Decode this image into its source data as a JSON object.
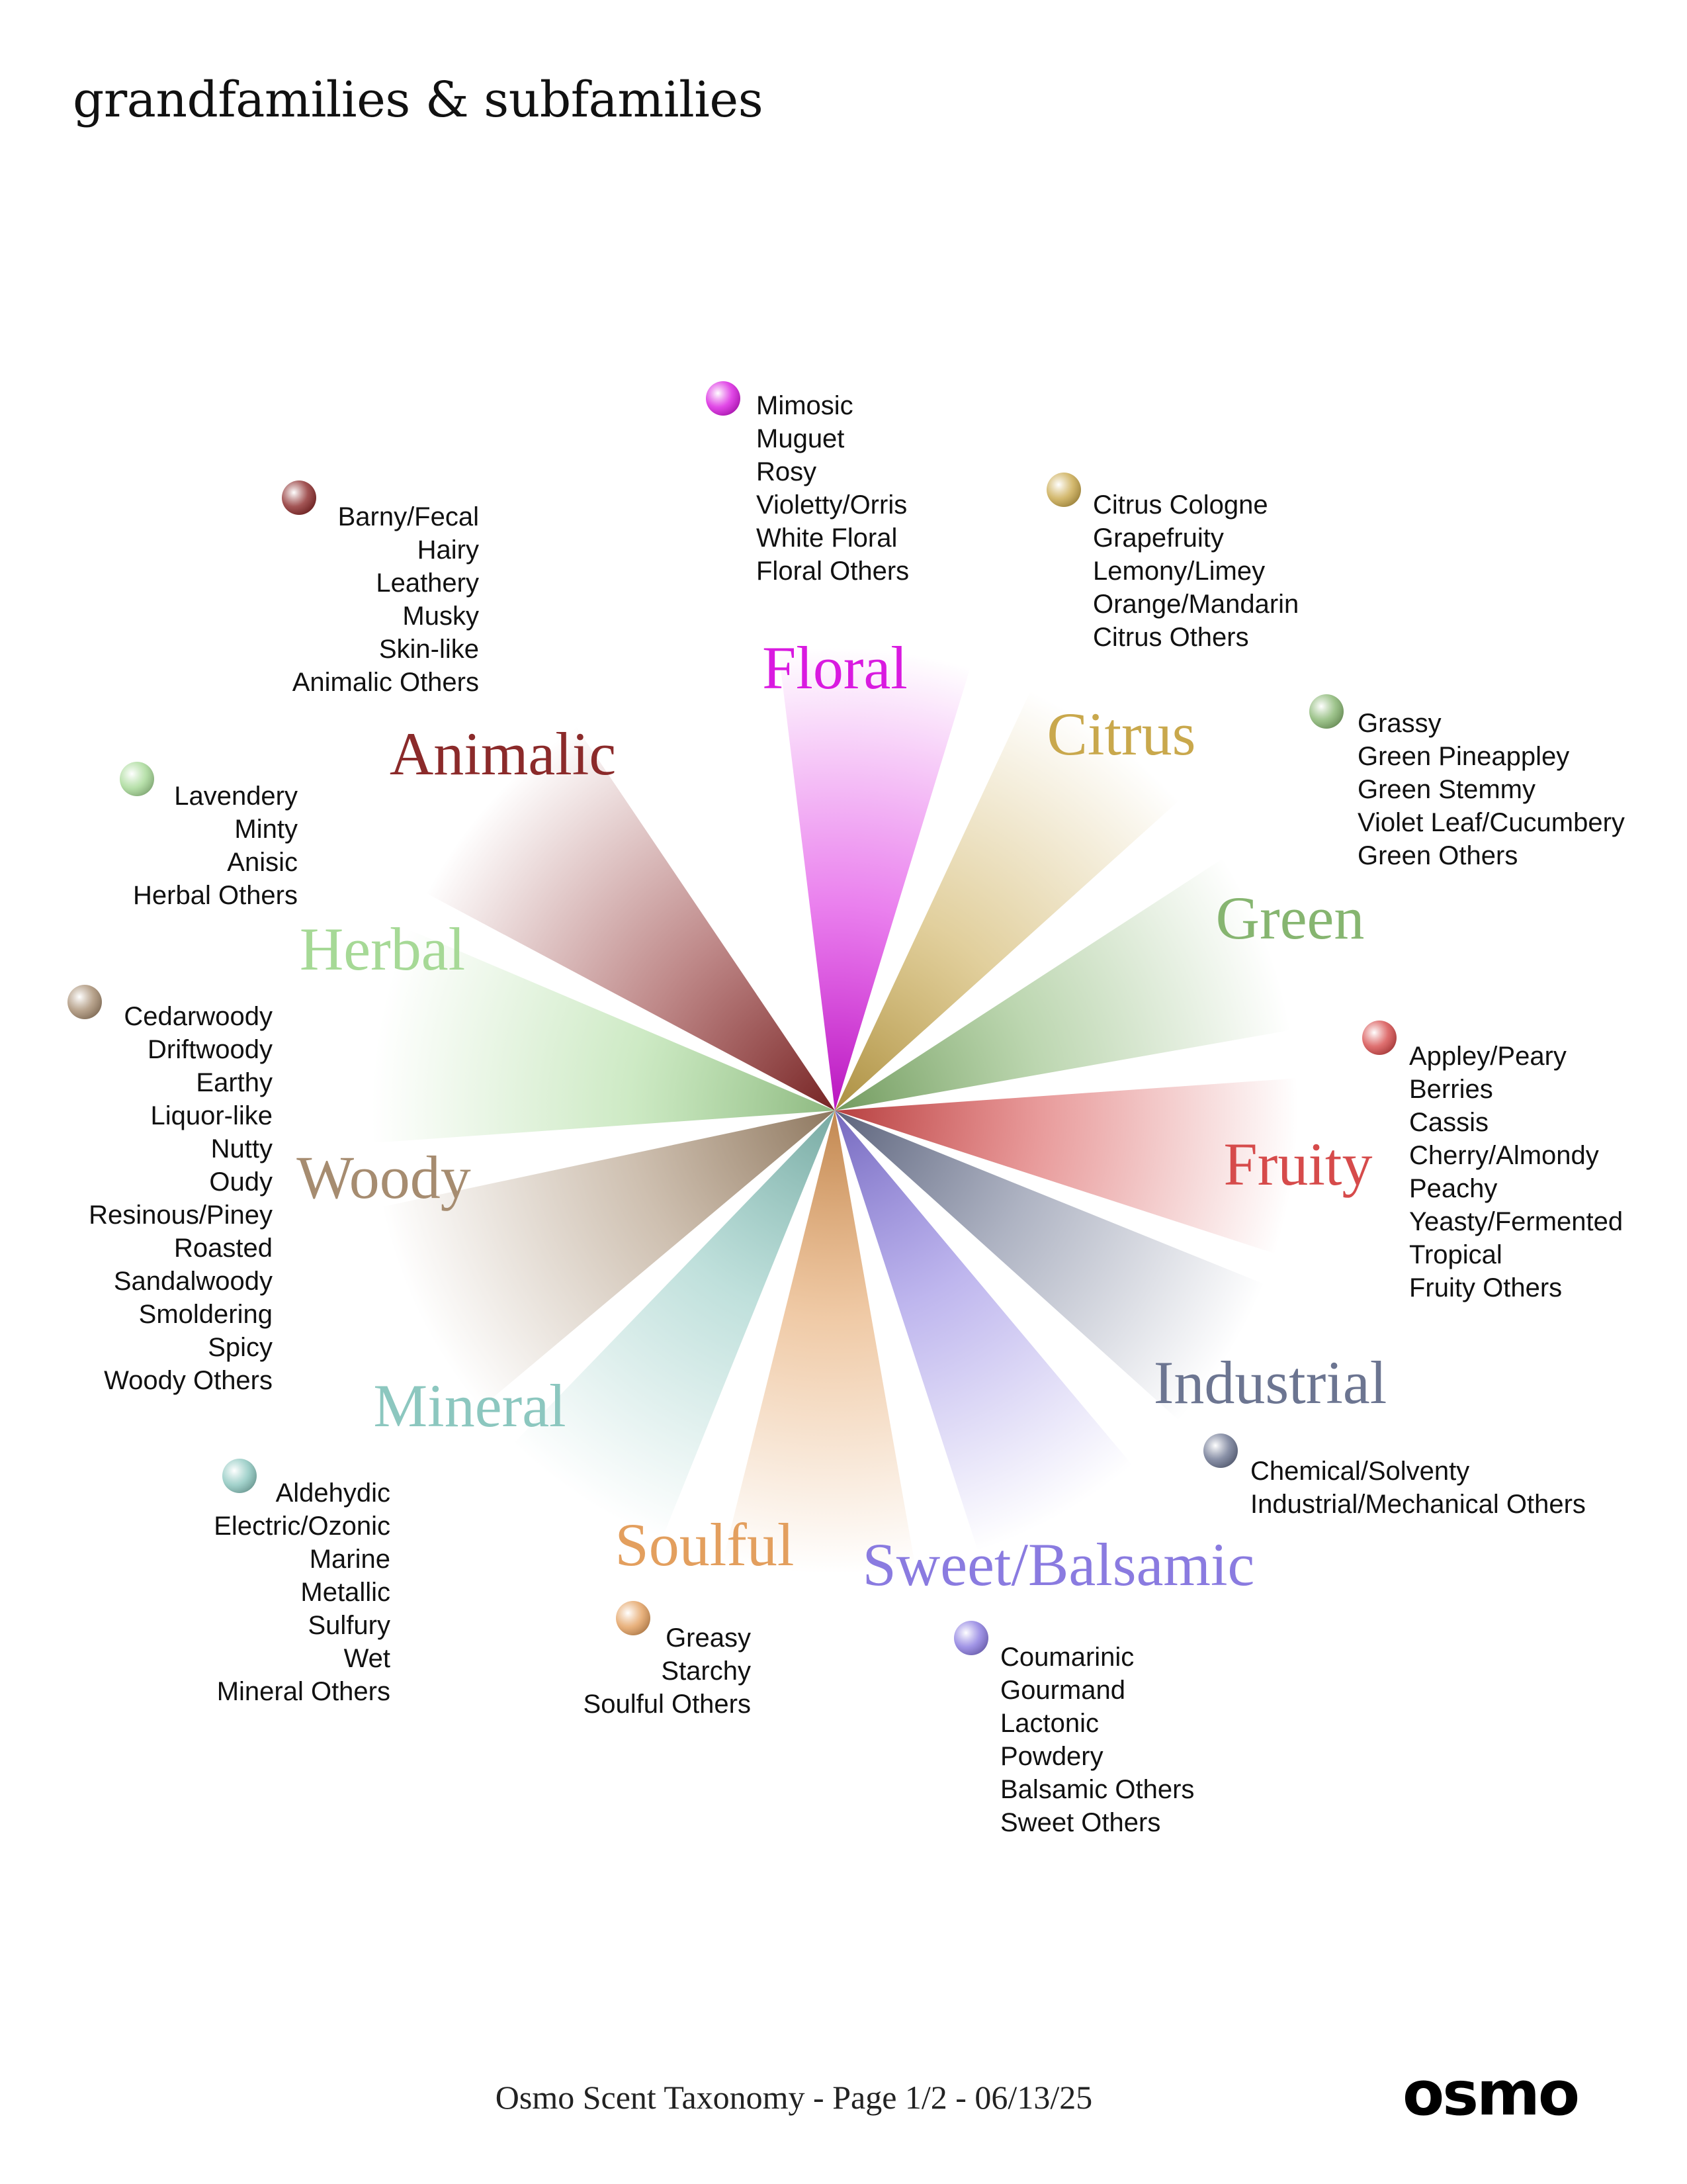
{
  "header": {
    "title": "grandfamilies & subfamilies"
  },
  "footer": {
    "text": "Osmo Scent Taxonomy - Page 1/2 - 06/13/25",
    "logo": "osmo"
  },
  "families": [
    {
      "name": "Floral",
      "color": "#D91AE0",
      "subs": [
        "Mimosic",
        "Muguet",
        "Rosy",
        "Violetty/Orris",
        "White Floral",
        "Floral  Others"
      ]
    },
    {
      "name": "Citrus",
      "color": "#C9A84C",
      "subs": [
        "Citrus Cologne",
        "Grapefruity",
        "Lemony/Limey",
        "Orange/Mandarin",
        "Citrus Others"
      ]
    },
    {
      "name": "Green",
      "color": "#86B570",
      "subs": [
        "Grassy",
        "Green Pineappley",
        "Green Stemmy",
        "Violet Leaf/Cucumbery",
        "Green Others"
      ]
    },
    {
      "name": "Fruity",
      "color": "#D64B4B",
      "subs": [
        "Appley/Peary",
        "Berries",
        "Cassis",
        "Cherry/Almondy",
        "Peachy",
        "Yeasty/Fermented",
        "Tropical",
        "Fruity Others"
      ]
    },
    {
      "name": "Industrial",
      "color": "#6C7591",
      "subs": [
        "Chemical/Solventy",
        "Industrial/Mechanical Others"
      ]
    },
    {
      "name": "Sweet/Balsamic",
      "color": "#8A7BE0",
      "subs": [
        "Coumarinic",
        "Gourmand",
        "Lactonic",
        "Powdery",
        "Balsamic Others",
        "Sweet Others"
      ]
    },
    {
      "name": "Soulful",
      "color": "#E39F5E",
      "subs": [
        "Greasy",
        "Starchy",
        "Soulful Others"
      ]
    },
    {
      "name": "Mineral",
      "color": "#8CC7BF",
      "subs": [
        "Aldehydic",
        "Electric/Ozonic",
        "Marine",
        "Metallic",
        "Sulfury",
        "Wet",
        "Mineral Others"
      ]
    },
    {
      "name": "Woody",
      "color": "#A68C70",
      "subs": [
        "Cedarwoody",
        "Driftwoody",
        "Earthy",
        "Liquor-like",
        "Nutty",
        "Oudy",
        "Resinous/Piney",
        "Roasted",
        "Sandalwoody",
        "Smoldering",
        "Spicy",
        "Woody Others"
      ]
    },
    {
      "name": "Herbal",
      "color": "#A6D996",
      "subs": [
        "Lavendery",
        "Minty",
        "Anisic",
        "Herbal Others"
      ]
    },
    {
      "name": "Animalic",
      "color": "#8B2A2A",
      "subs": [
        "Barny/Fecal",
        "Hairy",
        "Leathery",
        "Musky",
        "Skin-like",
        "Animalic Others"
      ]
    }
  ]
}
